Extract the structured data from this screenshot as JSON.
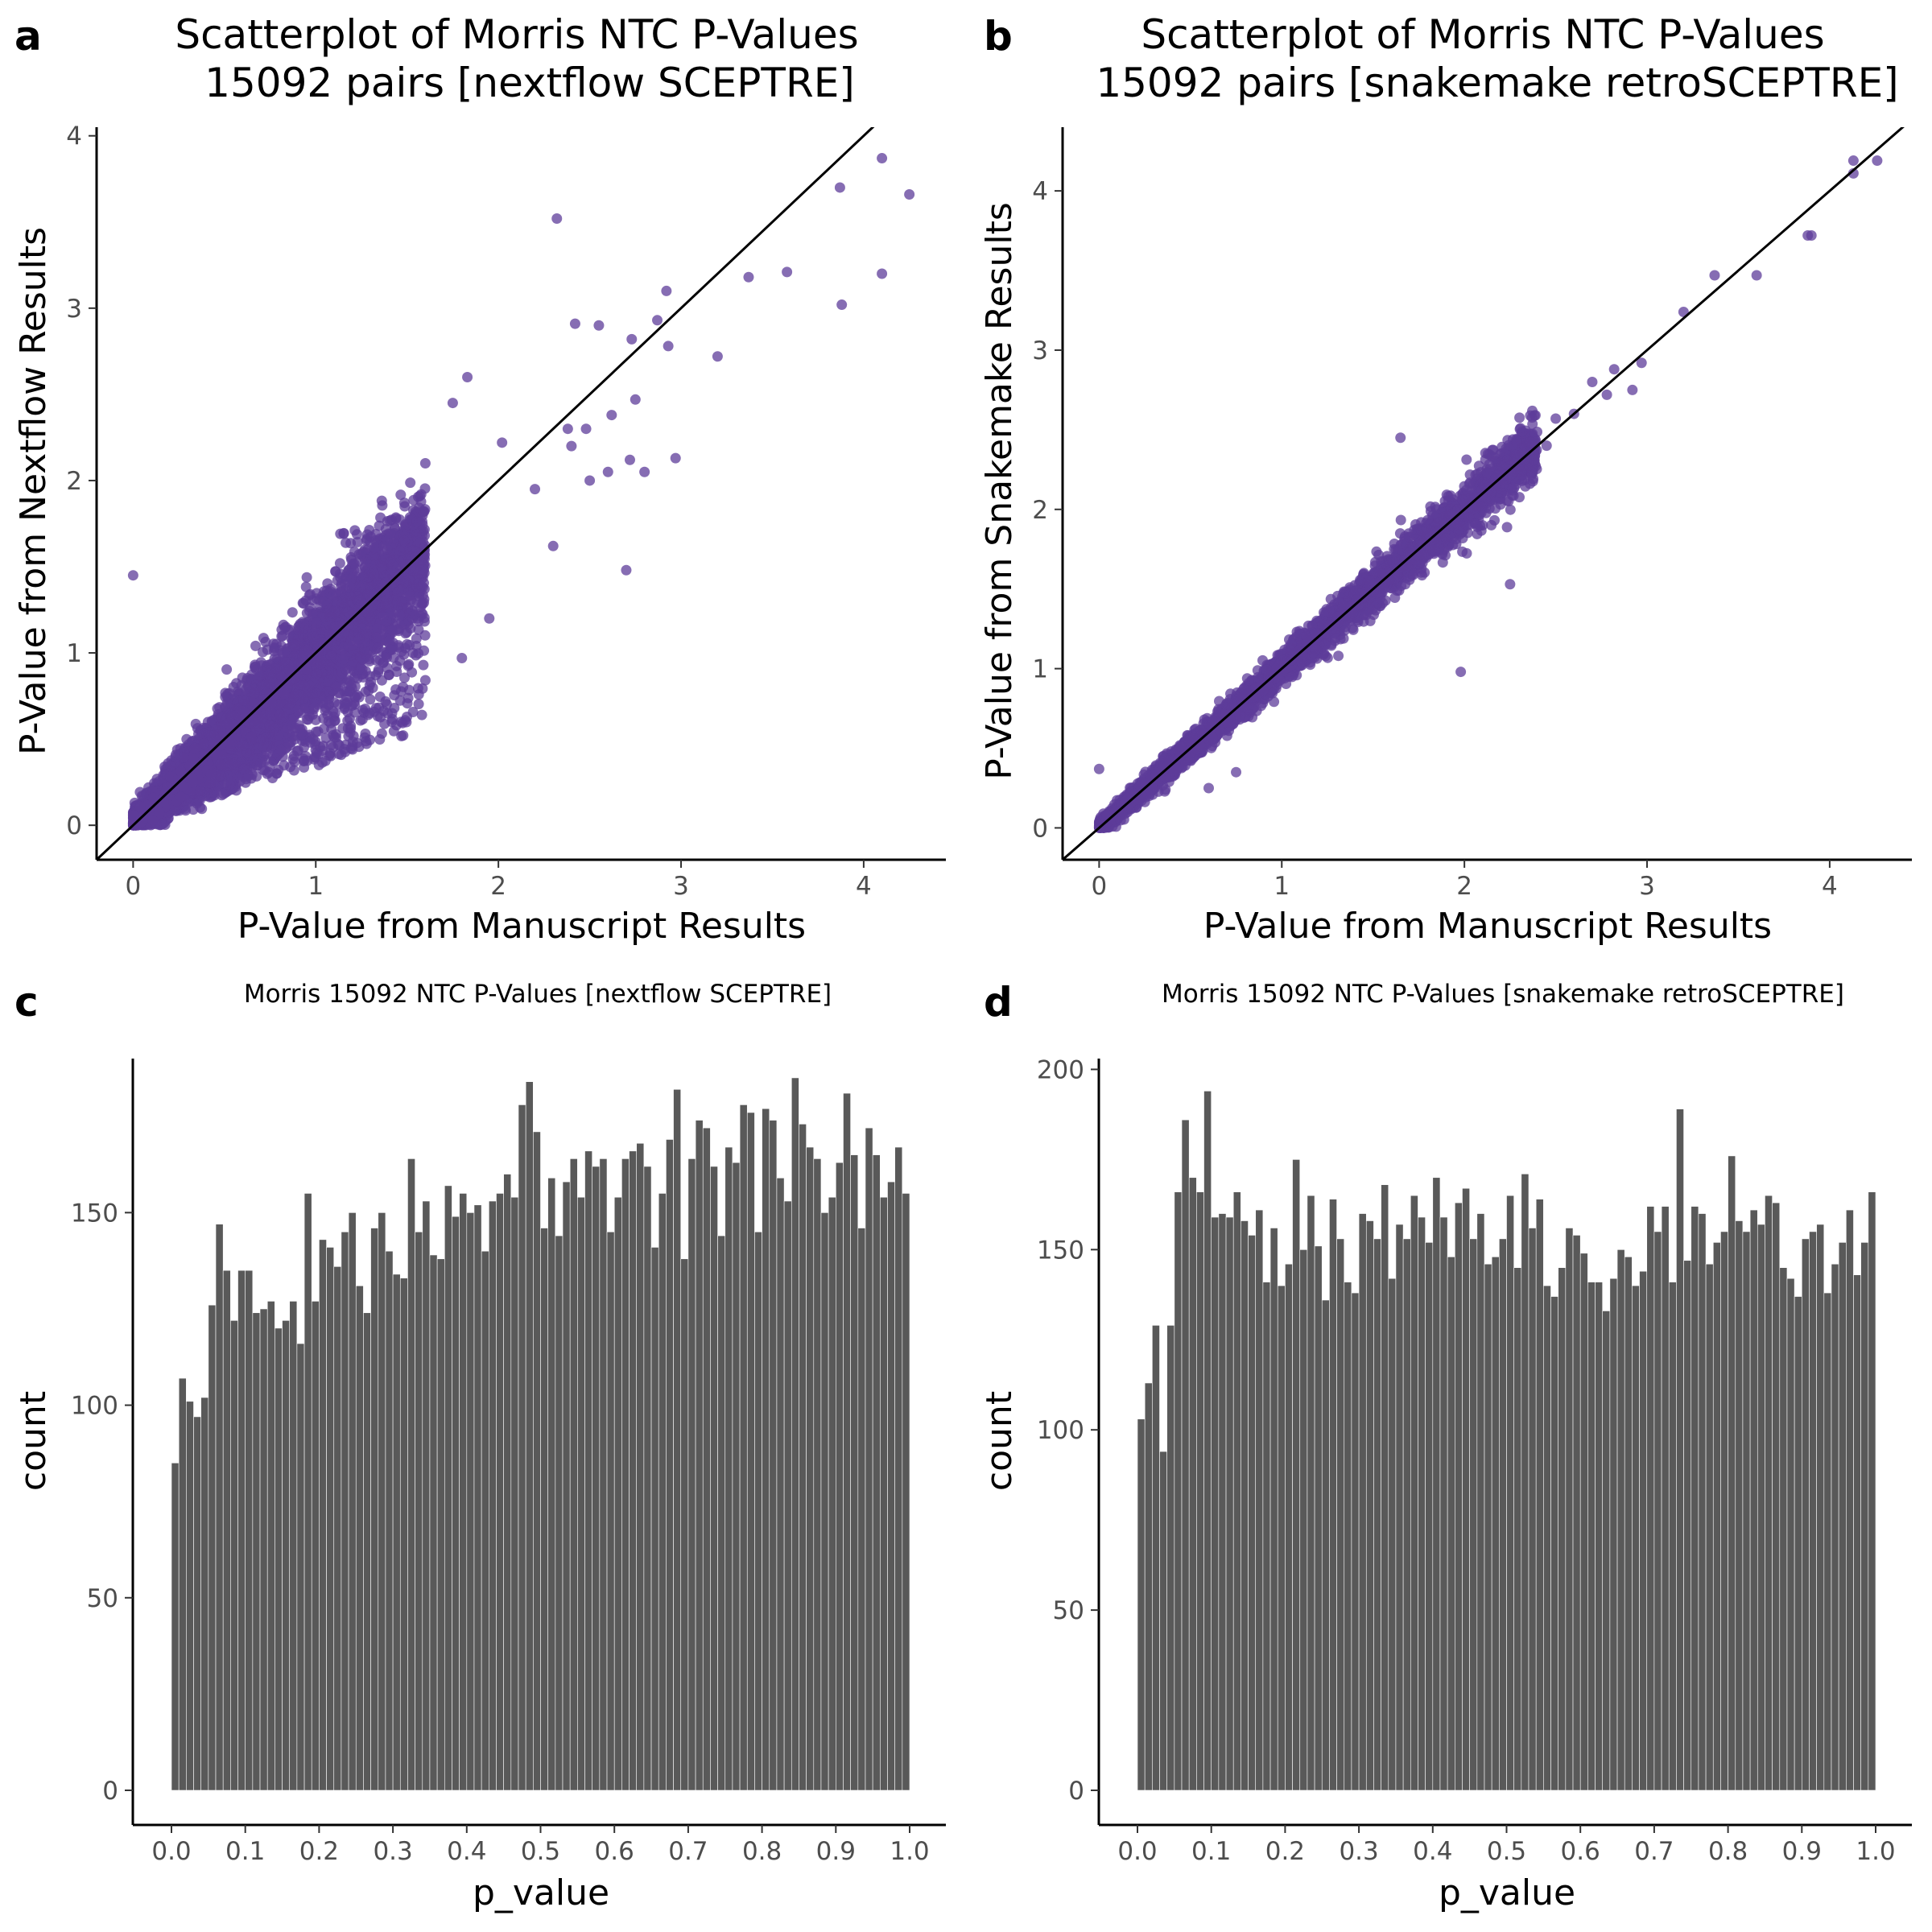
{
  "panels": {
    "a": {
      "letter": "a",
      "title_line1": "Scatterplot of Morris NTC P-Values",
      "title_line2": "15092 pairs [nextflow SCEPTRE]",
      "xlabel": "P-Value from Manuscript Results",
      "ylabel": "P-Value from Nextflow Results"
    },
    "b": {
      "letter": "b",
      "title_line1": "Scatterplot of Morris NTC P-Values",
      "title_line2": "15092 pairs [snakemake retroSCEPTRE]",
      "xlabel": "P-Value from Manuscript Results",
      "ylabel": "P-Value from Snakemake Results"
    },
    "c": {
      "letter": "c",
      "title": "Morris 15092 NTC P-Values [nextflow SCEPTRE]",
      "xlabel": "p_value",
      "ylabel": "count"
    },
    "d": {
      "letter": "d",
      "title": "Morris 15092 NTC P-Values [snakemake retroSCEPTRE]",
      "xlabel": "p_value",
      "ylabel": "count"
    }
  },
  "chart_data": [
    {
      "panel": "a",
      "type": "scatter",
      "title": "Scatterplot of Morris NTC P-Values 15092 pairs [nextflow SCEPTRE]",
      "xlabel": "P-Value from Manuscript Results",
      "ylabel": "P-Value from Nextflow Results",
      "xlim": [
        -0.2,
        4.45
      ],
      "ylim": [
        -0.2,
        4.05
      ],
      "xticks": [
        0,
        1,
        2,
        3,
        4
      ],
      "yticks": [
        0,
        1,
        2,
        3,
        4
      ],
      "reference_line": "y = x",
      "point_color": "#5e3c99",
      "n_points": 15092,
      "dense_cloud": {
        "x_range": [
          0,
          1.6
        ],
        "spread": 0.22
      },
      "points": [
        {
          "x": 0.0,
          "y": 1.45
        },
        {
          "x": 2.32,
          "y": 3.52
        },
        {
          "x": 2.92,
          "y": 3.1
        },
        {
          "x": 2.73,
          "y": 2.82
        },
        {
          "x": 2.87,
          "y": 2.93
        },
        {
          "x": 2.93,
          "y": 2.78
        },
        {
          "x": 3.2,
          "y": 2.72
        },
        {
          "x": 2.55,
          "y": 2.9
        },
        {
          "x": 2.42,
          "y": 2.91
        },
        {
          "x": 3.37,
          "y": 3.18
        },
        {
          "x": 3.58,
          "y": 3.21
        },
        {
          "x": 3.87,
          "y": 3.7
        },
        {
          "x": 3.88,
          "y": 3.02
        },
        {
          "x": 4.1,
          "y": 3.87
        },
        {
          "x": 4.1,
          "y": 3.2
        },
        {
          "x": 4.25,
          "y": 3.66
        },
        {
          "x": 2.7,
          "y": 1.48
        },
        {
          "x": 2.97,
          "y": 2.13
        },
        {
          "x": 2.8,
          "y": 2.05
        },
        {
          "x": 2.72,
          "y": 2.12
        },
        {
          "x": 2.75,
          "y": 2.47
        },
        {
          "x": 2.62,
          "y": 2.38
        },
        {
          "x": 2.48,
          "y": 2.3
        },
        {
          "x": 2.4,
          "y": 2.2
        },
        {
          "x": 2.2,
          "y": 1.95
        },
        {
          "x": 2.3,
          "y": 1.62
        },
        {
          "x": 1.75,
          "y": 2.45
        },
        {
          "x": 1.83,
          "y": 2.6
        },
        {
          "x": 2.02,
          "y": 2.22
        },
        {
          "x": 1.6,
          "y": 2.1
        },
        {
          "x": 1.8,
          "y": 0.97
        },
        {
          "x": 1.5,
          "y": 1.05
        },
        {
          "x": 2.5,
          "y": 2.0
        },
        {
          "x": 1.95,
          "y": 1.2
        },
        {
          "x": 2.6,
          "y": 2.05
        },
        {
          "x": 2.38,
          "y": 2.3
        }
      ]
    },
    {
      "panel": "b",
      "type": "scatter",
      "title": "Scatterplot of Morris NTC P-Values 15092 pairs [snakemake retroSCEPTRE]",
      "xlabel": "P-Value from Manuscript Results",
      "ylabel": "P-Value from Snakemake Results",
      "xlim": [
        -0.2,
        4.45
      ],
      "ylim": [
        -0.2,
        4.4
      ],
      "xticks": [
        0,
        1,
        2,
        3,
        4
      ],
      "yticks": [
        0,
        1,
        2,
        3,
        4
      ],
      "reference_line": "y = x",
      "point_color": "#5e3c99",
      "n_points": 15092,
      "dense_cloud": {
        "x_range": [
          0,
          2.4
        ],
        "spread": 0.05
      },
      "points": [
        {
          "x": 4.26,
          "y": 4.19
        },
        {
          "x": 4.13,
          "y": 4.19
        },
        {
          "x": 4.13,
          "y": 4.11
        },
        {
          "x": 3.88,
          "y": 3.72
        },
        {
          "x": 3.9,
          "y": 3.72
        },
        {
          "x": 3.6,
          "y": 3.47
        },
        {
          "x": 3.37,
          "y": 3.47
        },
        {
          "x": 3.2,
          "y": 3.24
        },
        {
          "x": 2.97,
          "y": 2.92
        },
        {
          "x": 2.92,
          "y": 2.75
        },
        {
          "x": 2.82,
          "y": 2.88
        },
        {
          "x": 2.78,
          "y": 2.72
        },
        {
          "x": 2.7,
          "y": 2.8
        },
        {
          "x": 2.6,
          "y": 2.6
        },
        {
          "x": 2.5,
          "y": 2.57
        },
        {
          "x": 2.45,
          "y": 2.4
        },
        {
          "x": 1.65,
          "y": 2.45
        },
        {
          "x": 2.25,
          "y": 1.53
        },
        {
          "x": 1.98,
          "y": 0.98
        },
        {
          "x": 0.6,
          "y": 0.25
        },
        {
          "x": 0.75,
          "y": 0.35
        },
        {
          "x": 0.0,
          "y": 0.37
        },
        {
          "x": 0.35,
          "y": 0.45
        },
        {
          "x": 1.45,
          "y": 1.6
        },
        {
          "x": 2.1,
          "y": 1.9
        }
      ]
    },
    {
      "panel": "c",
      "type": "bar",
      "subtype": "histogram",
      "title": "Morris 15092 NTC P-Values [nextflow SCEPTRE]",
      "xlabel": "p_value",
      "ylabel": "count",
      "bins": 100,
      "bin_range": [
        0,
        1
      ],
      "xticks": [
        0.0,
        0.1,
        0.2,
        0.3,
        0.4,
        0.5,
        0.6,
        0.7,
        0.8,
        0.9,
        1.0
      ],
      "xtick_labels": [
        "0.0",
        "0.1",
        "0.2",
        "0.3",
        "0.4",
        "0.5",
        "0.6",
        "0.7",
        "0.8",
        "0.9",
        "1.0"
      ],
      "yticks": [
        0,
        50,
        100,
        150
      ],
      "ylim": [
        0,
        190
      ],
      "bar_color": "#595959",
      "values": [
        85,
        107,
        101,
        97,
        102,
        126,
        147,
        135,
        122,
        135,
        135,
        124,
        125,
        127,
        120,
        122,
        127,
        116,
        155,
        127,
        143,
        141,
        136,
        145,
        150,
        131,
        124,
        146,
        150,
        140,
        134,
        133,
        164,
        145,
        153,
        139,
        138,
        157,
        149,
        155,
        150,
        152,
        140,
        153,
        155,
        160,
        154,
        178,
        184,
        171,
        146,
        159,
        144,
        158,
        164,
        154,
        166,
        162,
        164,
        145,
        154,
        164,
        166,
        168,
        162,
        141,
        155,
        169,
        182,
        138,
        164,
        174,
        172,
        162,
        144,
        167,
        163,
        178,
        176,
        145,
        177,
        174,
        159,
        153,
        185,
        173,
        167,
        164,
        150,
        154,
        163,
        181,
        165,
        146,
        172,
        165,
        154,
        158,
        167,
        155
      ]
    },
    {
      "panel": "d",
      "type": "bar",
      "subtype": "histogram",
      "title": "Morris 15092 NTC P-Values [snakemake retroSCEPTRE]",
      "xlabel": "p_value",
      "ylabel": "count",
      "bins": 100,
      "bin_range": [
        0,
        1
      ],
      "xticks": [
        0.0,
        0.1,
        0.2,
        0.3,
        0.4,
        0.5,
        0.6,
        0.7,
        0.8,
        0.9,
        1.0
      ],
      "xtick_labels": [
        "0.0",
        "0.1",
        "0.2",
        "0.3",
        "0.4",
        "0.5",
        "0.6",
        "0.7",
        "0.8",
        "0.9",
        "1.0"
      ],
      "yticks": [
        0,
        50,
        100,
        150,
        200
      ],
      "ylim": [
        0,
        203
      ],
      "bar_color": "#595959",
      "values": [
        103,
        113,
        129,
        94,
        129,
        166,
        186,
        170,
        166,
        194,
        159,
        160,
        159,
        166,
        158,
        154,
        161,
        141,
        156,
        140,
        146,
        175,
        150,
        165,
        151,
        136,
        164,
        153,
        141,
        138,
        160,
        158,
        153,
        168,
        142,
        157,
        153,
        165,
        159,
        152,
        170,
        159,
        148,
        163,
        167,
        153,
        160,
        146,
        148,
        153,
        165,
        145,
        171,
        156,
        164,
        140,
        137,
        145,
        156,
        154,
        149,
        141,
        141,
        133,
        142,
        150,
        148,
        140,
        144,
        162,
        155,
        162,
        141,
        189,
        147,
        162,
        160,
        146,
        152,
        155,
        176,
        158,
        155,
        161,
        157,
        165,
        163,
        145,
        142,
        137,
        153,
        155,
        157,
        138,
        146,
        152,
        161,
        143,
        152,
        166
      ]
    }
  ]
}
